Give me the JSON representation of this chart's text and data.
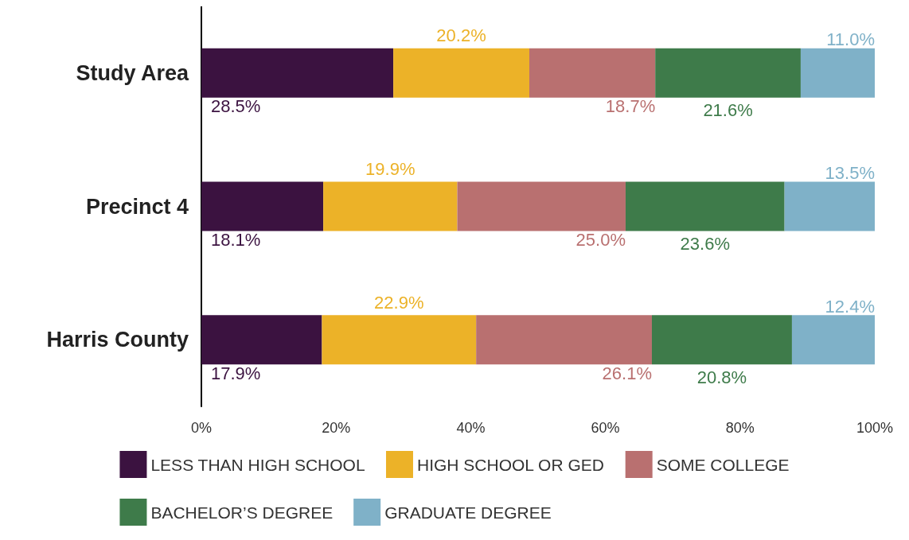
{
  "chart_data": {
    "type": "bar",
    "orientation": "horizontal",
    "stacked": true,
    "categories": [
      "Study Area",
      "Precinct 4",
      "Harris County"
    ],
    "xlim": [
      0,
      100
    ],
    "xticks": [
      {
        "value": 0,
        "label": "0%"
      },
      {
        "value": 20,
        "label": "20%"
      },
      {
        "value": 40,
        "label": "40%"
      },
      {
        "value": 60,
        "label": "60%"
      },
      {
        "value": 80,
        "label": "80%"
      },
      {
        "value": 100,
        "label": "100%"
      }
    ],
    "grid": false,
    "legend": "bottom",
    "series": [
      {
        "name": "LESS THAN HIGH SCHOOL",
        "color": "#3b1240",
        "values": [
          28.5,
          18.1,
          17.9
        ],
        "value_labels": [
          "28.5%",
          "18.1%",
          "17.9%"
        ]
      },
      {
        "name": "HIGH SCHOOL OR GED",
        "color": "#ecb228",
        "values": [
          20.2,
          19.9,
          22.9
        ],
        "value_labels": [
          "20.2%",
          "19.9%",
          "22.9%"
        ]
      },
      {
        "name": "SOME COLLEGE",
        "color": "#b97070",
        "values": [
          18.7,
          25.0,
          26.1
        ],
        "value_labels": [
          "18.7%",
          "25.0%",
          "26.1%"
        ]
      },
      {
        "name": "BACHELOR’S DEGREE",
        "color": "#3e7b4a",
        "values": [
          21.6,
          23.6,
          20.8
        ],
        "value_labels": [
          "21.6%",
          "23.6%",
          "20.8%"
        ]
      },
      {
        "name": "GRADUATE DEGREE",
        "color": "#7fb1c8",
        "values": [
          11.0,
          13.5,
          12.4
        ],
        "value_labels": [
          "11.0%",
          "13.5%",
          "12.4%"
        ]
      }
    ]
  }
}
